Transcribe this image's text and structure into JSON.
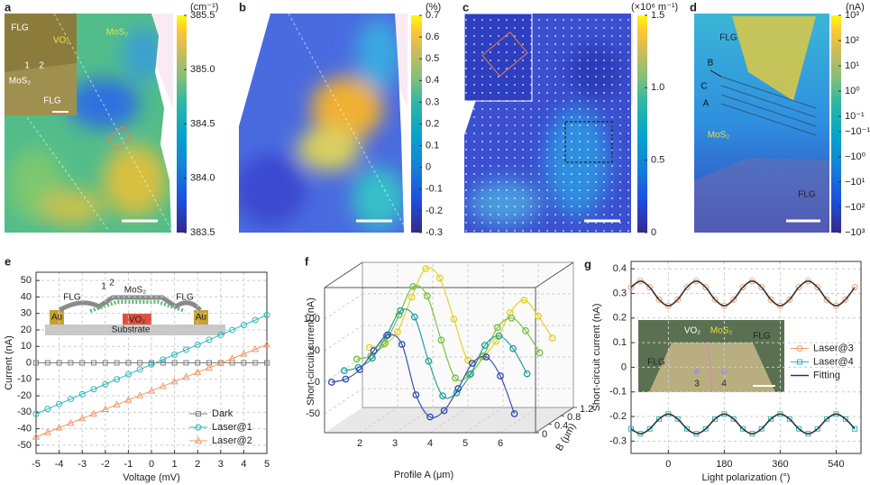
{
  "chart_data": [
    {
      "type": "heatmap",
      "label": "a",
      "unit": "(cm⁻¹)",
      "clim": [
        383.5,
        385.5
      ],
      "cticks": [
        383.5,
        {
          "value": 384,
          "label": "384.0"
        },
        384.5,
        {
          "value": 385,
          "label": "385.0"
        },
        385.5
      ],
      "annotations": [
        "FLG",
        "VO₂",
        "MoS₂",
        "1",
        "2",
        "MoS₂",
        "FLG"
      ]
    },
    {
      "type": "heatmap",
      "label": "b",
      "unit": "(%)",
      "clim": [
        -0.3,
        0.7
      ],
      "cticks": [
        -0.3,
        -0.2,
        -0.1,
        0,
        0.1,
        0.2,
        0.3,
        0.4,
        0.5,
        0.6,
        0.7
      ]
    },
    {
      "type": "heatmap",
      "label": "c",
      "unit": "(×10⁶ m⁻¹)",
      "clim": [
        0,
        1.5
      ],
      "cticks": [
        0,
        0.5,
        {
          "value": 1,
          "label": "1.0"
        },
        1.5
      ]
    },
    {
      "type": "heatmap",
      "label": "d",
      "unit": "(nA)",
      "scale": "symlog",
      "clim": [
        -1000,
        1000
      ],
      "cticks": [
        {
          "value": 1000,
          "label": "10³"
        },
        {
          "value": 100,
          "label": "10²"
        },
        {
          "value": 10,
          "label": "10¹"
        },
        {
          "value": 1,
          "label": "10⁰"
        },
        {
          "value": 0.1,
          "label": "10⁻¹"
        },
        {
          "value": -0.1,
          "label": "−10⁻¹"
        },
        {
          "value": -1,
          "label": "−10⁰"
        },
        {
          "value": -10,
          "label": "−10¹"
        },
        {
          "value": -100,
          "label": "−10²"
        },
        {
          "value": -1000,
          "label": "−10³"
        }
      ],
      "annotations": [
        "FLG",
        "B",
        "C",
        "A",
        "MoS₂",
        "FLG"
      ]
    },
    {
      "type": "line",
      "label": "e",
      "xlabel": "Voltage (mV)",
      "ylabel": "Current (nA)",
      "xlim": [
        -5,
        5
      ],
      "xticks": [
        -5,
        -4,
        -3,
        -2,
        -1,
        0,
        1,
        2,
        3,
        4,
        5
      ],
      "ylim": [
        -55,
        55
      ],
      "yticks": [
        -50,
        -40,
        -30,
        -20,
        -10,
        0,
        10,
        20,
        30,
        40,
        50
      ],
      "grid": true,
      "legend": "lower right",
      "x": [
        -5,
        -4.5,
        -4,
        -3.5,
        -3,
        -2.5,
        -2,
        -1.5,
        -1,
        -0.5,
        0,
        0.5,
        1,
        1.5,
        2,
        2.5,
        3,
        3.5,
        4,
        4.5,
        5
      ],
      "series": [
        {
          "name": "Dark",
          "color": "#808080",
          "marker": "square",
          "values": [
            0,
            0,
            0,
            0,
            0,
            0,
            0,
            0,
            0,
            0,
            0,
            0,
            0,
            0,
            0,
            0,
            0,
            0,
            0,
            0,
            0
          ]
        },
        {
          "name": "Laser@1",
          "color": "#2bb5c0",
          "marker": "circle",
          "values": [
            -31,
            -28,
            -25,
            -22,
            -19,
            -16,
            -13,
            -10,
            -7,
            -4,
            -1,
            2,
            5,
            8,
            11,
            14,
            17,
            20,
            23,
            26,
            29
          ]
        },
        {
          "name": "Laser@2",
          "color": "#ef9a68",
          "marker": "triangle",
          "values": [
            -45,
            -42.2,
            -39.4,
            -36.6,
            -33.8,
            -31,
            -28.2,
            -25.4,
            -22.6,
            -19.8,
            -17,
            -14.2,
            -11.4,
            -8.6,
            -5.8,
            -3,
            -0.2,
            2.6,
            5.4,
            8.2,
            11
          ]
        }
      ],
      "annotations": [
        "FLG",
        "MoS₂",
        "FLG",
        "Au",
        "VO₂",
        "Au",
        "Substrate",
        "1",
        "2"
      ]
    },
    {
      "type": "line3d",
      "label": "f",
      "xlabel": "Profile A (μm)",
      "ylabel": "Short-circuit current (nA)",
      "blabel": "B (μm)",
      "xlim": [
        1,
        7
      ],
      "xticks": [
        2,
        3,
        4,
        5,
        6
      ],
      "ylim": [
        -80,
        150
      ],
      "yticks": [
        -50,
        0,
        50,
        100
      ],
      "blim": [
        0,
        1.2
      ],
      "bticks": [
        0,
        0.4,
        0.8,
        1.2
      ],
      "x": [
        1.2,
        1.6,
        2.0,
        2.4,
        2.8,
        3.2,
        3.6,
        4.0,
        4.4,
        4.8,
        5.2,
        5.6,
        6.0,
        6.4
      ],
      "series": [
        {
          "b": 1.2,
          "color": "#e3d22b",
          "values": [
            15,
            20,
            40,
            95,
            140,
            125,
            60,
            -5,
            0,
            25,
            70,
            90,
            65,
            30
          ]
        },
        {
          "b": 0.8,
          "color": "#7cc044",
          "values": [
            10,
            15,
            35,
            80,
            125,
            110,
            40,
            -20,
            -15,
            15,
            60,
            75,
            55,
            20
          ]
        },
        {
          "b": 0.4,
          "color": "#26a39e",
          "values": [
            5,
            10,
            25,
            60,
            100,
            90,
            20,
            -35,
            -30,
            0,
            45,
            60,
            40,
            0
          ]
        },
        {
          "b": 0,
          "color": "#3a4fb2",
          "values": [
            0,
            5,
            20,
            50,
            75,
            60,
            -20,
            -55,
            -45,
            -10,
            30,
            40,
            10,
            -50
          ]
        }
      ]
    },
    {
      "type": "line",
      "label": "g",
      "xlabel": "Light polarization (°)",
      "ylabel": "Short-circuit current (nA)",
      "xlim": [
        -120,
        620
      ],
      "xticks": [
        0,
        180,
        360,
        540
      ],
      "ylim": [
        -0.35,
        0.43
      ],
      "yticks": [
        -0.3,
        -0.2,
        -0.1,
        0,
        0.1,
        0.2,
        0.3,
        0.4
      ],
      "grid": true,
      "legend": "right",
      "x": [
        -120,
        -90,
        -60,
        -30,
        0,
        30,
        60,
        90,
        120,
        150,
        180,
        210,
        240,
        270,
        300,
        330,
        360,
        390,
        420,
        450,
        480,
        510,
        540,
        570,
        600
      ],
      "series": [
        {
          "name": "Laser@3",
          "color": "#ef9a68",
          "marker": "circle",
          "values": [
            0.325,
            0.35,
            0.325,
            0.275,
            0.25,
            0.275,
            0.325,
            0.35,
            0.325,
            0.275,
            0.25,
            0.275,
            0.325,
            0.35,
            0.325,
            0.275,
            0.25,
            0.275,
            0.325,
            0.35,
            0.325,
            0.275,
            0.25,
            0.275,
            0.325
          ]
        },
        {
          "name": "Laser@4",
          "color": "#2bb5c0",
          "marker": "square",
          "values": [
            -0.25,
            -0.27,
            -0.25,
            -0.21,
            -0.19,
            -0.21,
            -0.25,
            -0.27,
            -0.25,
            -0.21,
            -0.19,
            -0.21,
            -0.25,
            -0.27,
            -0.25,
            -0.21,
            -0.19,
            -0.21,
            -0.25,
            -0.27,
            -0.25,
            -0.21,
            -0.19,
            -0.21,
            -0.25
          ]
        },
        {
          "name": "Fitting",
          "color": "#333333",
          "marker": "none",
          "values": [
            0.325,
            0.35,
            0.325,
            0.275,
            0.25,
            0.275,
            0.325,
            0.35,
            0.325,
            0.275,
            0.25,
            0.275,
            0.325,
            0.35,
            0.325,
            0.275,
            0.25,
            0.275,
            0.325,
            0.35,
            0.325,
            0.275,
            0.25,
            0.275,
            0.325
          ]
        },
        {
          "color": "#333333",
          "marker": "none",
          "values": [
            -0.25,
            -0.27,
            -0.25,
            -0.21,
            -0.19,
            -0.21,
            -0.25,
            -0.27,
            -0.25,
            -0.21,
            -0.19,
            -0.21,
            -0.25,
            -0.27,
            -0.25,
            -0.21,
            -0.19,
            -0.21,
            -0.25,
            -0.27,
            -0.25,
            -0.21,
            -0.19,
            -0.21,
            -0.25
          ]
        }
      ],
      "annotations": [
        "VO₂",
        "MoS₂",
        "FLG",
        "FLG",
        "3",
        "4"
      ]
    }
  ]
}
